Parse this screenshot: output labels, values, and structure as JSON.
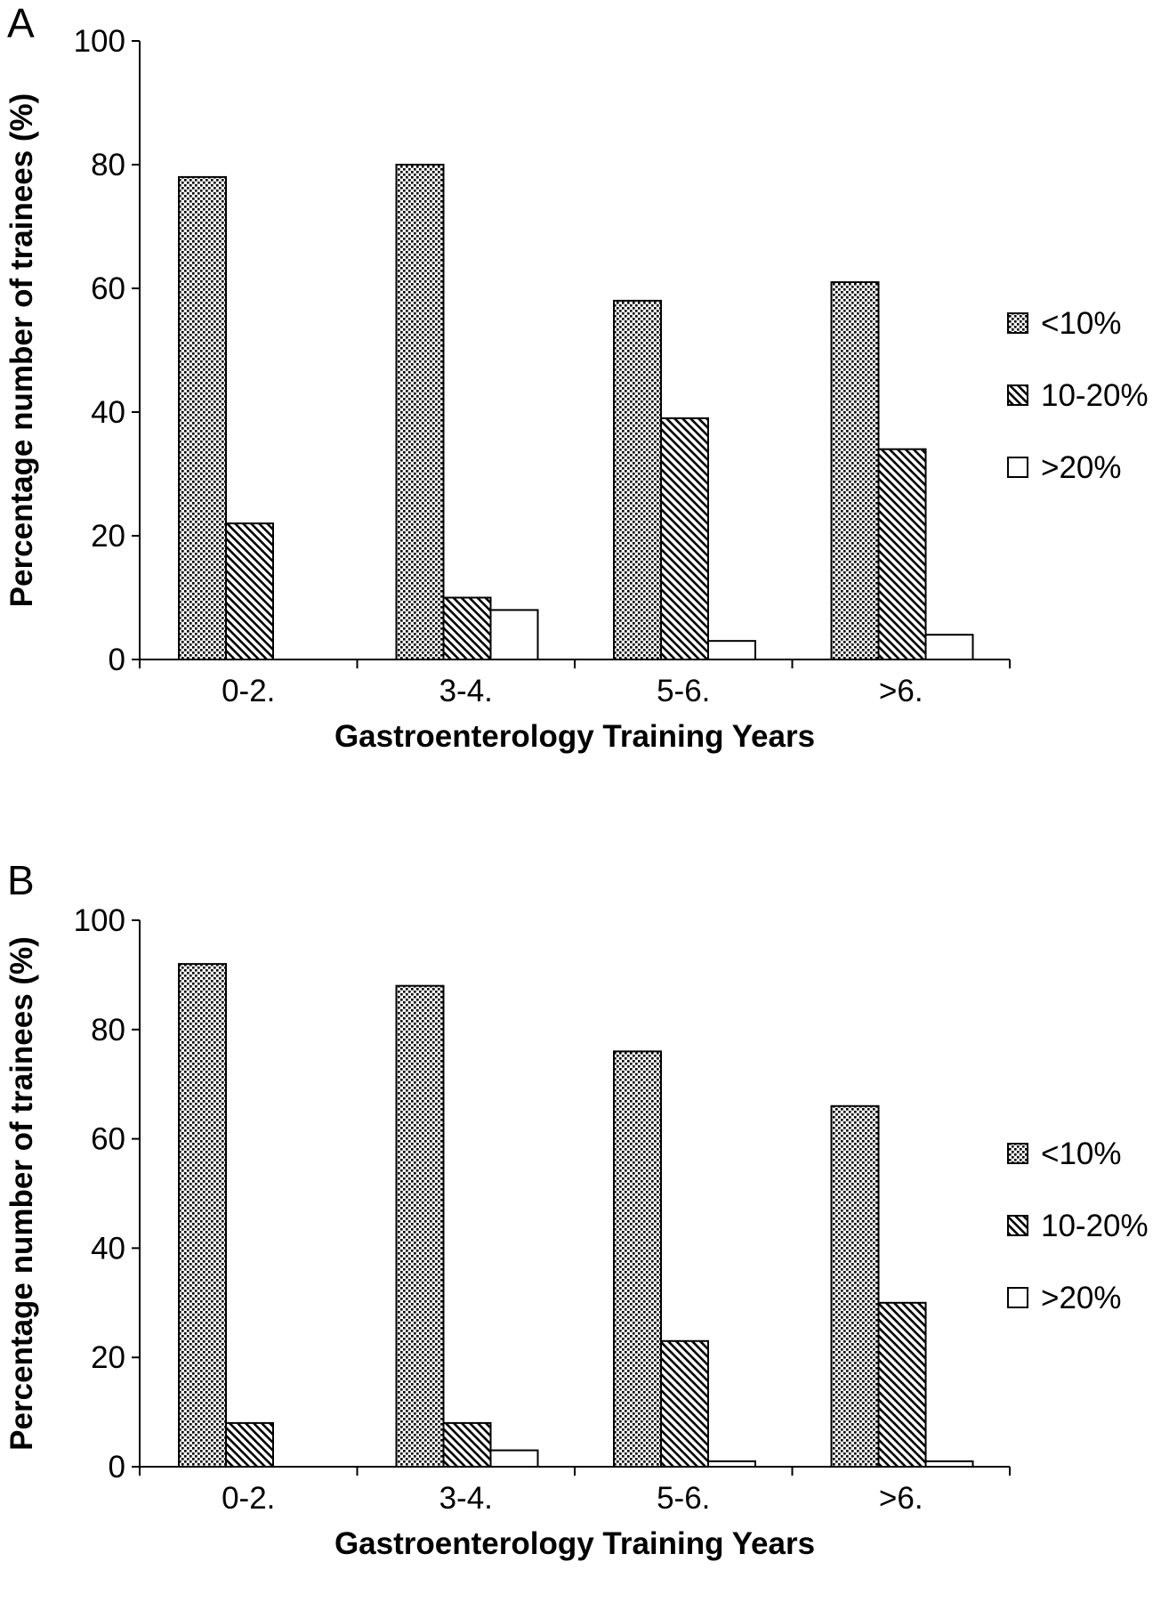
{
  "chart_data": [
    {
      "panel": "A",
      "type": "bar",
      "xlabel": "Gastroenterology Training Years",
      "ylabel": "Percentage number of trainees (%)",
      "ylim": [
        0,
        100
      ],
      "yticks": [
        "0",
        "20",
        "40",
        "60",
        "80",
        "100"
      ],
      "categories": [
        "0-2.",
        "3-4.",
        "5-6.",
        ">6."
      ],
      "series": [
        {
          "name": "<10%",
          "values": [
            78,
            80,
            58,
            61
          ],
          "pattern": "dots"
        },
        {
          "name": "10-20%",
          "values": [
            22,
            10,
            39,
            34
          ],
          "pattern": "diagonal-hatch"
        },
        {
          "name": ">20%",
          "values": [
            0,
            8,
            3,
            4
          ],
          "pattern": "empty"
        }
      ],
      "legend_position": "right",
      "grid": false
    },
    {
      "panel": "B",
      "type": "bar",
      "xlabel": "Gastroenterology Training Years",
      "ylabel": "Percentage number of trainees (%)",
      "ylim": [
        0,
        100
      ],
      "yticks": [
        "0",
        "20",
        "40",
        "60",
        "80",
        "100"
      ],
      "categories": [
        "0-2.",
        "3-4.",
        "5-6.",
        ">6."
      ],
      "series": [
        {
          "name": "<10%",
          "values": [
            92,
            88,
            76,
            66
          ],
          "pattern": "dots"
        },
        {
          "name": "10-20%",
          "values": [
            8,
            8,
            23,
            30
          ],
          "pattern": "diagonal-hatch"
        },
        {
          "name": ">20%",
          "values": [
            0,
            3,
            1,
            1
          ],
          "pattern": "empty"
        }
      ],
      "legend_position": "right",
      "grid": false
    }
  ],
  "colors": {
    "ink": "#000000",
    "background": "#ffffff"
  }
}
